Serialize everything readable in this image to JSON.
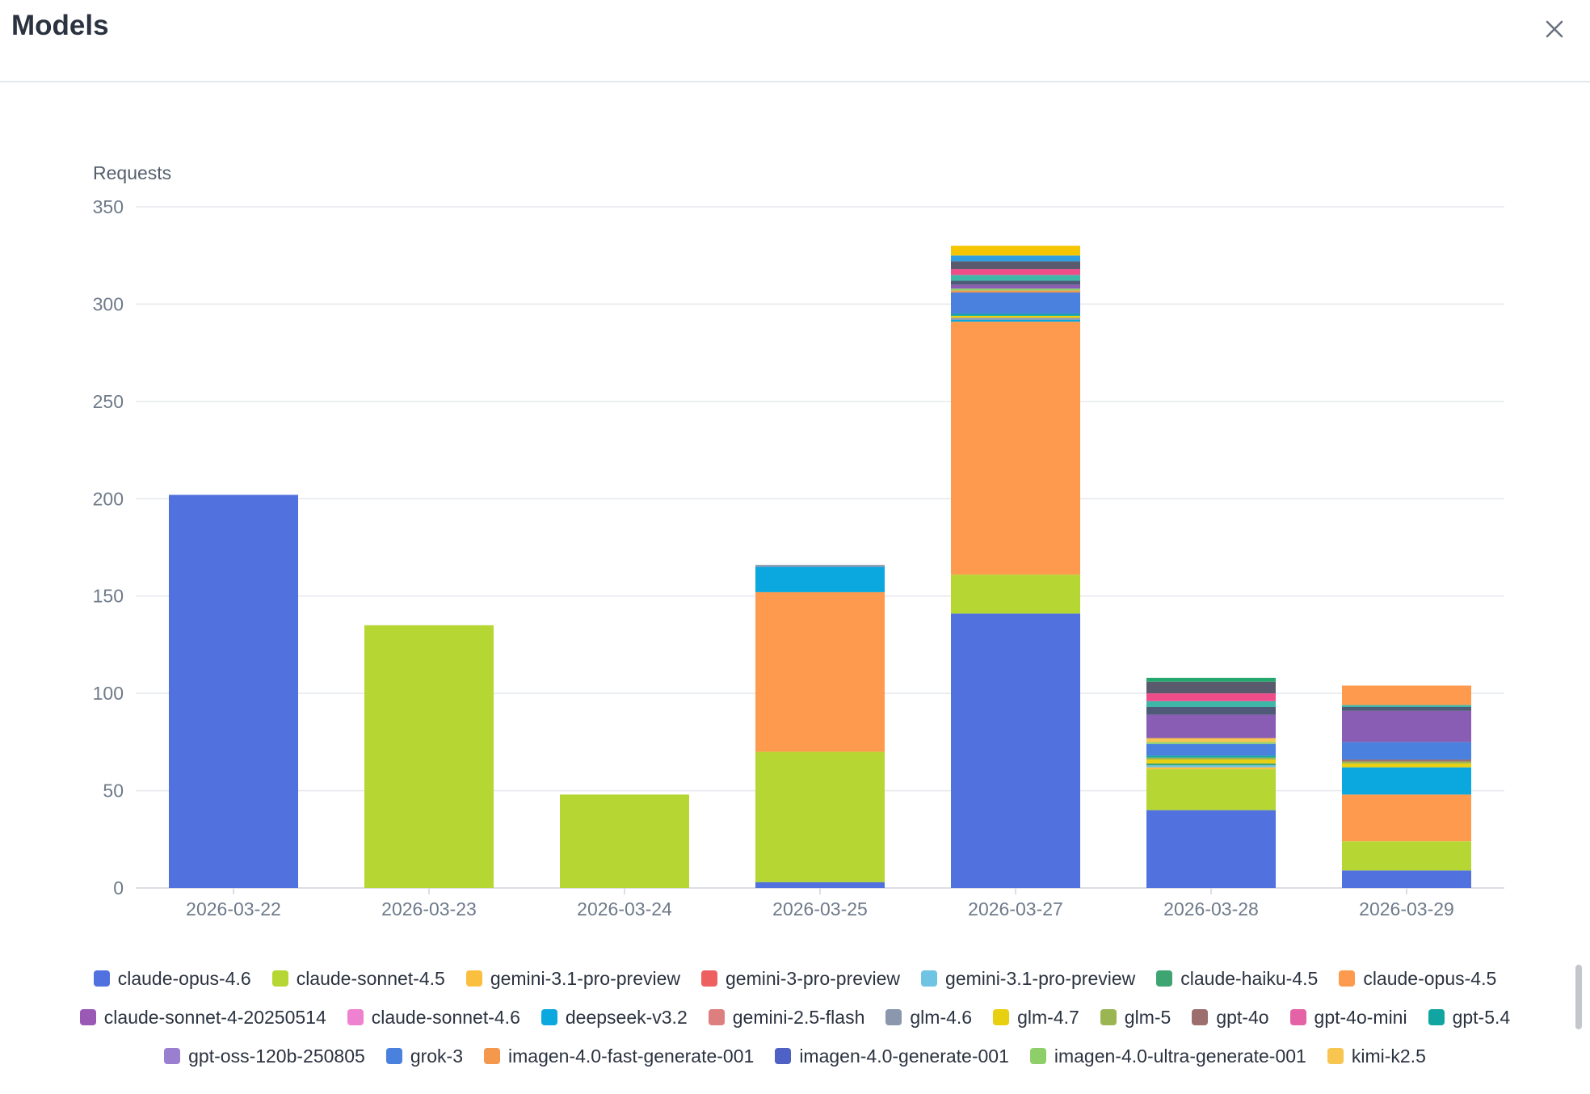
{
  "header": {
    "title": "Models",
    "close_icon": "close-icon"
  },
  "chart_data": {
    "type": "bar",
    "stacked": true,
    "ylabel": "Requests",
    "ylim": [
      0,
      350
    ],
    "yticks": [
      0,
      50,
      100,
      150,
      200,
      250,
      300,
      350
    ],
    "grid": true,
    "legend_position": "bottom",
    "categories": [
      "2026-03-22",
      "2026-03-23",
      "2026-03-24",
      "2026-03-25",
      "2026-03-27",
      "2026-03-28",
      "2026-03-29"
    ],
    "series": [
      {
        "name": "claude-opus-4.6",
        "color": "#5171de",
        "values": [
          202,
          0,
          0,
          3,
          141,
          40,
          9
        ]
      },
      {
        "name": "claude-sonnet-4.5",
        "color": "#b5d633",
        "values": [
          0,
          135,
          48,
          67,
          20,
          21,
          15
        ]
      },
      {
        "name": "gemini-3.1-pro-preview",
        "color": "#fbbf3f",
        "values": [
          0,
          0,
          0,
          0,
          0,
          1,
          0
        ]
      },
      {
        "name": "gemini-3-pro-preview",
        "color": "#ee6060",
        "values": [
          0,
          0,
          0,
          0,
          0,
          0,
          0
        ]
      },
      {
        "name": "gemini-3.1-pro-preview",
        "color": "#6fc3e3",
        "values": [
          0,
          0,
          0,
          0,
          0,
          1,
          0
        ]
      },
      {
        "name": "claude-haiku-4.5",
        "color": "#3ea472",
        "values": [
          0,
          0,
          0,
          0,
          0,
          1,
          0
        ]
      },
      {
        "name": "claude-opus-4.5",
        "color": "#fe9a4d",
        "values": [
          0,
          0,
          0,
          82,
          130,
          0,
          24
        ]
      },
      {
        "name": "claude-sonnet-4-20250514",
        "color": "#9b59b6",
        "values": [
          0,
          0,
          0,
          0,
          0,
          0,
          0
        ]
      },
      {
        "name": "claude-sonnet-4.6",
        "color": "#ee82d0",
        "values": [
          0,
          0,
          0,
          0,
          0,
          0,
          0
        ]
      },
      {
        "name": "deepseek-v3.2",
        "color": "#0ba8df",
        "values": [
          0,
          0,
          0,
          13,
          1,
          0,
          14
        ]
      },
      {
        "name": "gemini-2.5-flash",
        "color": "#de7f7f",
        "values": [
          0,
          0,
          0,
          0,
          0,
          0,
          0
        ]
      },
      {
        "name": "glm-4.6",
        "color": "#8a97ad",
        "values": [
          0,
          0,
          0,
          1,
          1,
          0,
          0
        ]
      },
      {
        "name": "glm-4.7",
        "color": "#e8cf0f",
        "values": [
          0,
          0,
          0,
          0,
          1,
          2,
          2
        ]
      },
      {
        "name": "glm-5",
        "color": "#9ab552",
        "values": [
          0,
          0,
          0,
          0,
          0,
          1,
          1
        ]
      },
      {
        "name": "gpt-4o",
        "color": "#9c6e6e",
        "values": [
          0,
          0,
          0,
          0,
          0,
          0,
          1
        ]
      },
      {
        "name": "gpt-4o-mini",
        "color": "#e463a6",
        "values": [
          0,
          0,
          0,
          0,
          0,
          0,
          0
        ]
      },
      {
        "name": "gpt-5.4",
        "color": "#10a5a0",
        "values": [
          0,
          0,
          0,
          0,
          1,
          1,
          0
        ]
      },
      {
        "name": "gpt-oss-120b-250805",
        "color": "#9a7fd1",
        "values": [
          0,
          0,
          0,
          0,
          0,
          0,
          0
        ]
      },
      {
        "name": "grok-3",
        "color": "#4a80de",
        "values": [
          0,
          0,
          0,
          0,
          11,
          6,
          9
        ]
      },
      {
        "name": "imagen-4.0-fast-generate-001",
        "color": "#f3984d",
        "values": [
          0,
          0,
          0,
          0,
          1,
          0,
          0
        ]
      },
      {
        "name": "imagen-4.0-generate-001",
        "color": "#4e61c5",
        "values": [
          0,
          0,
          0,
          0,
          0,
          0,
          0
        ]
      },
      {
        "name": "imagen-4.0-ultra-generate-001",
        "color": "#8fcf6a",
        "values": [
          0,
          0,
          0,
          0,
          1,
          1,
          0
        ]
      },
      {
        "name": "kimi-k2.5",
        "color": "#f8c550",
        "values": [
          0,
          0,
          0,
          0,
          0,
          2,
          0
        ]
      },
      {
        "name": "",
        "color": "#8a5db5",
        "values": [
          0,
          0,
          0,
          0,
          2,
          12,
          16
        ]
      },
      {
        "name": "",
        "color": "#4f5a78",
        "values": [
          0,
          0,
          0,
          0,
          2,
          4,
          2
        ]
      },
      {
        "name": "",
        "color": "#3fb7a8",
        "values": [
          0,
          0,
          0,
          0,
          3,
          3,
          1
        ]
      },
      {
        "name": "",
        "color": "#ee4d8a",
        "values": [
          0,
          0,
          0,
          0,
          3,
          4,
          0
        ]
      },
      {
        "name": "",
        "color": "#5a5a6e",
        "values": [
          0,
          0,
          0,
          0,
          4,
          6,
          0
        ]
      },
      {
        "name": "",
        "color": "#2f9fe0",
        "values": [
          0,
          0,
          0,
          0,
          3,
          0,
          0
        ]
      },
      {
        "name": "",
        "color": "#f5c500",
        "values": [
          0,
          0,
          0,
          0,
          5,
          0,
          0
        ]
      },
      {
        "name": "",
        "color": "#24a86e",
        "values": [
          0,
          0,
          0,
          0,
          0,
          2,
          0
        ]
      },
      {
        "name": "",
        "color": "#fe9a4d",
        "values": [
          0,
          0,
          0,
          0,
          0,
          0,
          10
        ]
      }
    ]
  }
}
